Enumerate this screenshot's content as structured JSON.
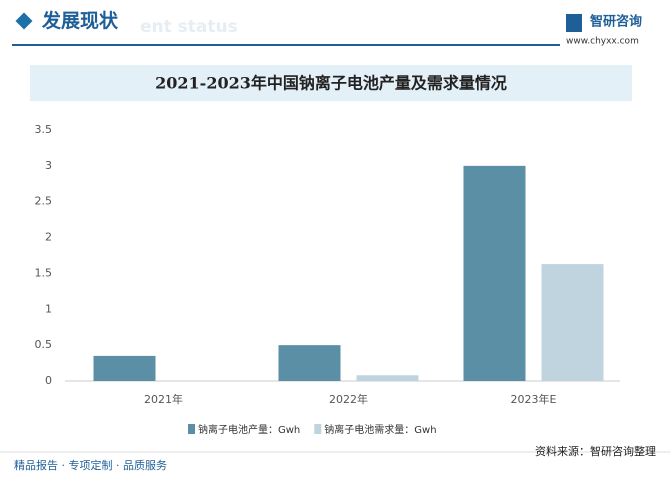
{
  "header": {
    "title": "发展现状",
    "subtitle": "ent status",
    "brand": "智研咨询",
    "url": "www.chyxx.com"
  },
  "chart_data": {
    "type": "bar",
    "title": "2021-2023年中国钠离子电池产量及需求量情况",
    "categories": [
      "2021年",
      "2022年",
      "2023年E"
    ],
    "series": [
      {
        "name": "钠离子电池产量：Gwh",
        "color": "#5b8fa6",
        "values": [
          0.35,
          0.5,
          3
        ]
      },
      {
        "name": "钠离子电池需求量：Gwh",
        "color": "#bfd4de",
        "values": [
          null,
          0.08,
          1.63
        ]
      }
    ],
    "ylim": [
      0,
      3.5
    ],
    "yticks": [
      0,
      0.5,
      1,
      1.5,
      2,
      2.5,
      3,
      3.5
    ],
    "grid": false
  },
  "footer": {
    "slogan": "精品报告 · 专项定制 · 品质服务",
    "source": "资料来源：智研咨询整理"
  }
}
